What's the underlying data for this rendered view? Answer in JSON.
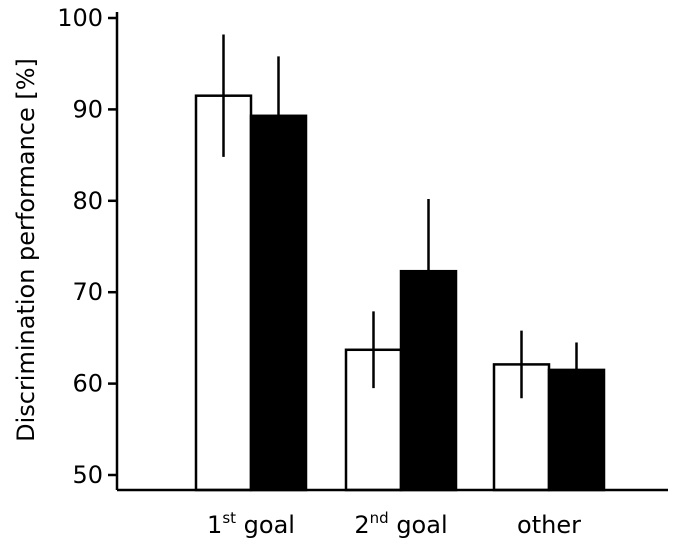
{
  "chart_data": {
    "type": "bar",
    "ylabel": "Discrimination performance [%]",
    "ylim": [
      48,
      100
    ],
    "yticks": [
      50,
      60,
      70,
      80,
      90,
      100
    ],
    "categories": [
      {
        "main": "1",
        "sup": "st",
        "rest": " goal"
      },
      {
        "main": "2",
        "sup": "nd",
        "rest": " goal"
      },
      {
        "main": "other",
        "sup": "",
        "rest": ""
      }
    ],
    "series": [
      {
        "fill": "#ffffff",
        "values": [
          91.5,
          63.7,
          62.1
        ],
        "errors": [
          6.7,
          4.2,
          3.7
        ]
      },
      {
        "fill": "#000000",
        "values": [
          89.3,
          72.3,
          61.5
        ],
        "errors": [
          6.5,
          7.9,
          3.0
        ]
      }
    ],
    "grid": false,
    "legend": "none"
  }
}
